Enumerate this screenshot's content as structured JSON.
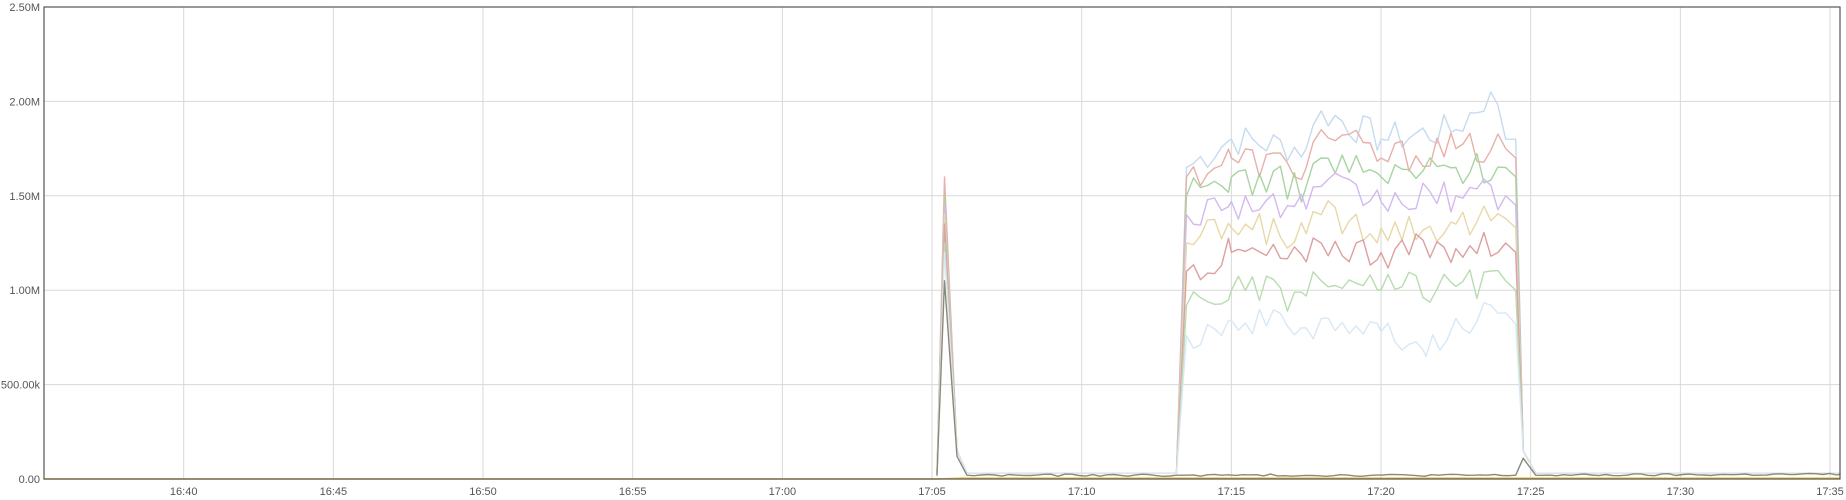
{
  "chart_data": {
    "type": "line",
    "title": "",
    "xlabel": "",
    "ylabel": "",
    "x_range": [
      "16:35:20",
      "17:35:20"
    ],
    "ylim": [
      0,
      2500000
    ],
    "grid": true,
    "legend": "none",
    "x_ticks": [
      "16:40",
      "16:45",
      "16:50",
      "16:55",
      "17:00",
      "17:05",
      "17:10",
      "17:15",
      "17:20",
      "17:25",
      "17:30",
      "17:35"
    ],
    "y_ticks": [
      {
        "value": 0,
        "label": "0.00"
      },
      {
        "value": 500000,
        "label": "500.00k"
      },
      {
        "value": 1000000,
        "label": "1.00M"
      },
      {
        "value": 1500000,
        "label": "1.50M"
      },
      {
        "value": 2000000,
        "label": "2.00M"
      },
      {
        "value": 2500000,
        "label": "2.50M"
      }
    ],
    "series": [
      {
        "color": "#c6dbef",
        "level": 1800000,
        "spike": 1300000,
        "data": [
          [
            "17:05:10",
            30000
          ],
          [
            "17:05:25",
            1300000
          ],
          [
            "17:05:50",
            150000
          ],
          [
            "17:06:10",
            30000
          ],
          [
            "17:13:10",
            30000
          ],
          [
            "17:13:30",
            1650000
          ],
          [
            "17:15:00",
            1800000
          ],
          [
            "17:17:30",
            1750000
          ],
          [
            "17:18:00",
            1950000
          ],
          [
            "17:20:00",
            1800000
          ],
          [
            "17:22:30",
            1850000
          ],
          [
            "17:23:40",
            2050000
          ],
          [
            "17:24:10",
            1800000
          ],
          [
            "17:24:30",
            1800000
          ],
          [
            "17:24:45",
            150000
          ],
          [
            "17:25:10",
            30000
          ],
          [
            "17:35:20",
            30000
          ]
        ]
      },
      {
        "color": "#e8b0aa",
        "level": 1700000,
        "spike": 1600000,
        "data": [
          [
            "17:05:10",
            30000
          ],
          [
            "17:05:25",
            1600000
          ],
          [
            "17:05:50",
            150000
          ],
          [
            "17:06:10",
            30000
          ],
          [
            "17:13:10",
            30000
          ],
          [
            "17:13:30",
            1600000
          ],
          [
            "17:15:00",
            1700000
          ],
          [
            "17:17:30",
            1650000
          ],
          [
            "17:18:00",
            1850000
          ],
          [
            "17:20:00",
            1700000
          ],
          [
            "17:22:30",
            1750000
          ],
          [
            "17:24:10",
            1750000
          ],
          [
            "17:24:30",
            1700000
          ],
          [
            "17:24:45",
            150000
          ],
          [
            "17:25:10",
            30000
          ],
          [
            "17:35:20",
            30000
          ]
        ]
      },
      {
        "color": "#a8d4a0",
        "level": 1600000,
        "spike": 1500000,
        "data": [
          [
            "17:05:10",
            30000
          ],
          [
            "17:05:25",
            1500000
          ],
          [
            "17:05:50",
            150000
          ],
          [
            "17:06:10",
            30000
          ],
          [
            "17:13:10",
            30000
          ],
          [
            "17:13:30",
            1500000
          ],
          [
            "17:15:00",
            1600000
          ],
          [
            "17:17:30",
            1550000
          ],
          [
            "17:18:00",
            1700000
          ],
          [
            "17:20:00",
            1600000
          ],
          [
            "17:22:30",
            1650000
          ],
          [
            "17:24:10",
            1650000
          ],
          [
            "17:24:30",
            1600000
          ],
          [
            "17:24:45",
            150000
          ],
          [
            "17:25:10",
            30000
          ],
          [
            "17:35:20",
            30000
          ]
        ]
      },
      {
        "color": "#d4b8f0",
        "level": 1470000,
        "spike": 1450000,
        "data": [
          [
            "17:05:10",
            30000
          ],
          [
            "17:05:25",
            1450000
          ],
          [
            "17:05:50",
            150000
          ],
          [
            "17:06:10",
            30000
          ],
          [
            "17:13:10",
            30000
          ],
          [
            "17:13:30",
            1400000
          ],
          [
            "17:15:00",
            1470000
          ],
          [
            "17:17:30",
            1430000
          ],
          [
            "17:18:00",
            1550000
          ],
          [
            "17:20:00",
            1470000
          ],
          [
            "17:22:30",
            1500000
          ],
          [
            "17:24:10",
            1500000
          ],
          [
            "17:24:30",
            1450000
          ],
          [
            "17:24:45",
            150000
          ],
          [
            "17:25:10",
            30000
          ],
          [
            "17:35:20",
            30000
          ]
        ]
      },
      {
        "color": "#e8d8a8",
        "level": 1330000,
        "spike": 1400000,
        "data": [
          [
            "17:05:10",
            30000
          ],
          [
            "17:05:25",
            1400000
          ],
          [
            "17:05:50",
            150000
          ],
          [
            "17:06:10",
            30000
          ],
          [
            "17:13:10",
            30000
          ],
          [
            "17:13:30",
            1250000
          ],
          [
            "17:15:00",
            1330000
          ],
          [
            "17:17:30",
            1300000
          ],
          [
            "17:18:00",
            1400000
          ],
          [
            "17:20:00",
            1330000
          ],
          [
            "17:22:30",
            1350000
          ],
          [
            "17:24:10",
            1380000
          ],
          [
            "17:24:30",
            1330000
          ],
          [
            "17:24:45",
            150000
          ],
          [
            "17:25:10",
            30000
          ],
          [
            "17:35:20",
            30000
          ]
        ]
      },
      {
        "color": "#dca0a0",
        "level": 1200000,
        "spike": 1350000,
        "data": [
          [
            "17:05:10",
            30000
          ],
          [
            "17:05:25",
            1350000
          ],
          [
            "17:05:50",
            150000
          ],
          [
            "17:06:10",
            30000
          ],
          [
            "17:13:10",
            30000
          ],
          [
            "17:13:30",
            1100000
          ],
          [
            "17:15:00",
            1200000
          ],
          [
            "17:17:30",
            1150000
          ],
          [
            "17:18:00",
            1250000
          ],
          [
            "17:20:00",
            1200000
          ],
          [
            "17:22:30",
            1220000
          ],
          [
            "17:24:10",
            1250000
          ],
          [
            "17:24:30",
            1200000
          ],
          [
            "17:24:45",
            150000
          ],
          [
            "17:25:10",
            30000
          ],
          [
            "17:35:20",
            30000
          ]
        ]
      },
      {
        "color": "#b8dcb0",
        "level": 1000000,
        "spike": 1250000,
        "data": [
          [
            "17:05:10",
            30000
          ],
          [
            "17:05:25",
            1250000
          ],
          [
            "17:05:50",
            150000
          ],
          [
            "17:06:10",
            30000
          ],
          [
            "17:13:10",
            30000
          ],
          [
            "17:13:30",
            920000
          ],
          [
            "17:15:00",
            1000000
          ],
          [
            "17:17:30",
            970000
          ],
          [
            "17:18:00",
            1050000
          ],
          [
            "17:20:00",
            1000000
          ],
          [
            "17:22:30",
            1020000
          ],
          [
            "17:24:10",
            1050000
          ],
          [
            "17:24:30",
            1000000
          ],
          [
            "17:24:45",
            150000
          ],
          [
            "17:25:10",
            30000
          ],
          [
            "17:35:20",
            30000
          ]
        ]
      },
      {
        "color": "#d8e8f6",
        "level": 820000,
        "spike": 1200000,
        "data": [
          [
            "17:05:10",
            30000
          ],
          [
            "17:05:25",
            1200000
          ],
          [
            "17:05:50",
            150000
          ],
          [
            "17:06:10",
            30000
          ],
          [
            "17:13:10",
            30000
          ],
          [
            "17:13:30",
            760000
          ],
          [
            "17:15:00",
            840000
          ],
          [
            "17:17:30",
            800000
          ],
          [
            "17:18:00",
            850000
          ],
          [
            "17:20:00",
            780000
          ],
          [
            "17:21:30",
            650000
          ],
          [
            "17:22:30",
            850000
          ],
          [
            "17:24:10",
            880000
          ],
          [
            "17:24:30",
            820000
          ],
          [
            "17:24:45",
            150000
          ],
          [
            "17:25:10",
            30000
          ],
          [
            "17:35:20",
            30000
          ]
        ]
      },
      {
        "color": "#8a8a78",
        "level": 25000,
        "spike": 1050000,
        "data": [
          [
            "17:05:10",
            20000
          ],
          [
            "17:05:25",
            1050000
          ],
          [
            "17:05:50",
            120000
          ],
          [
            "17:06:10",
            20000
          ],
          [
            "17:13:10",
            20000
          ],
          [
            "17:13:30",
            20000
          ],
          [
            "17:24:30",
            20000
          ],
          [
            "17:24:45",
            110000
          ],
          [
            "17:25:10",
            20000
          ],
          [
            "17:35:20",
            25000
          ]
        ]
      },
      {
        "color": "#f0c030",
        "level": 5000,
        "spike": 5000,
        "data": [
          [
            "16:35:20",
            0
          ],
          [
            "17:05:10",
            0
          ],
          [
            "17:06:00",
            5000
          ],
          [
            "17:35:20",
            5000
          ]
        ]
      }
    ]
  }
}
